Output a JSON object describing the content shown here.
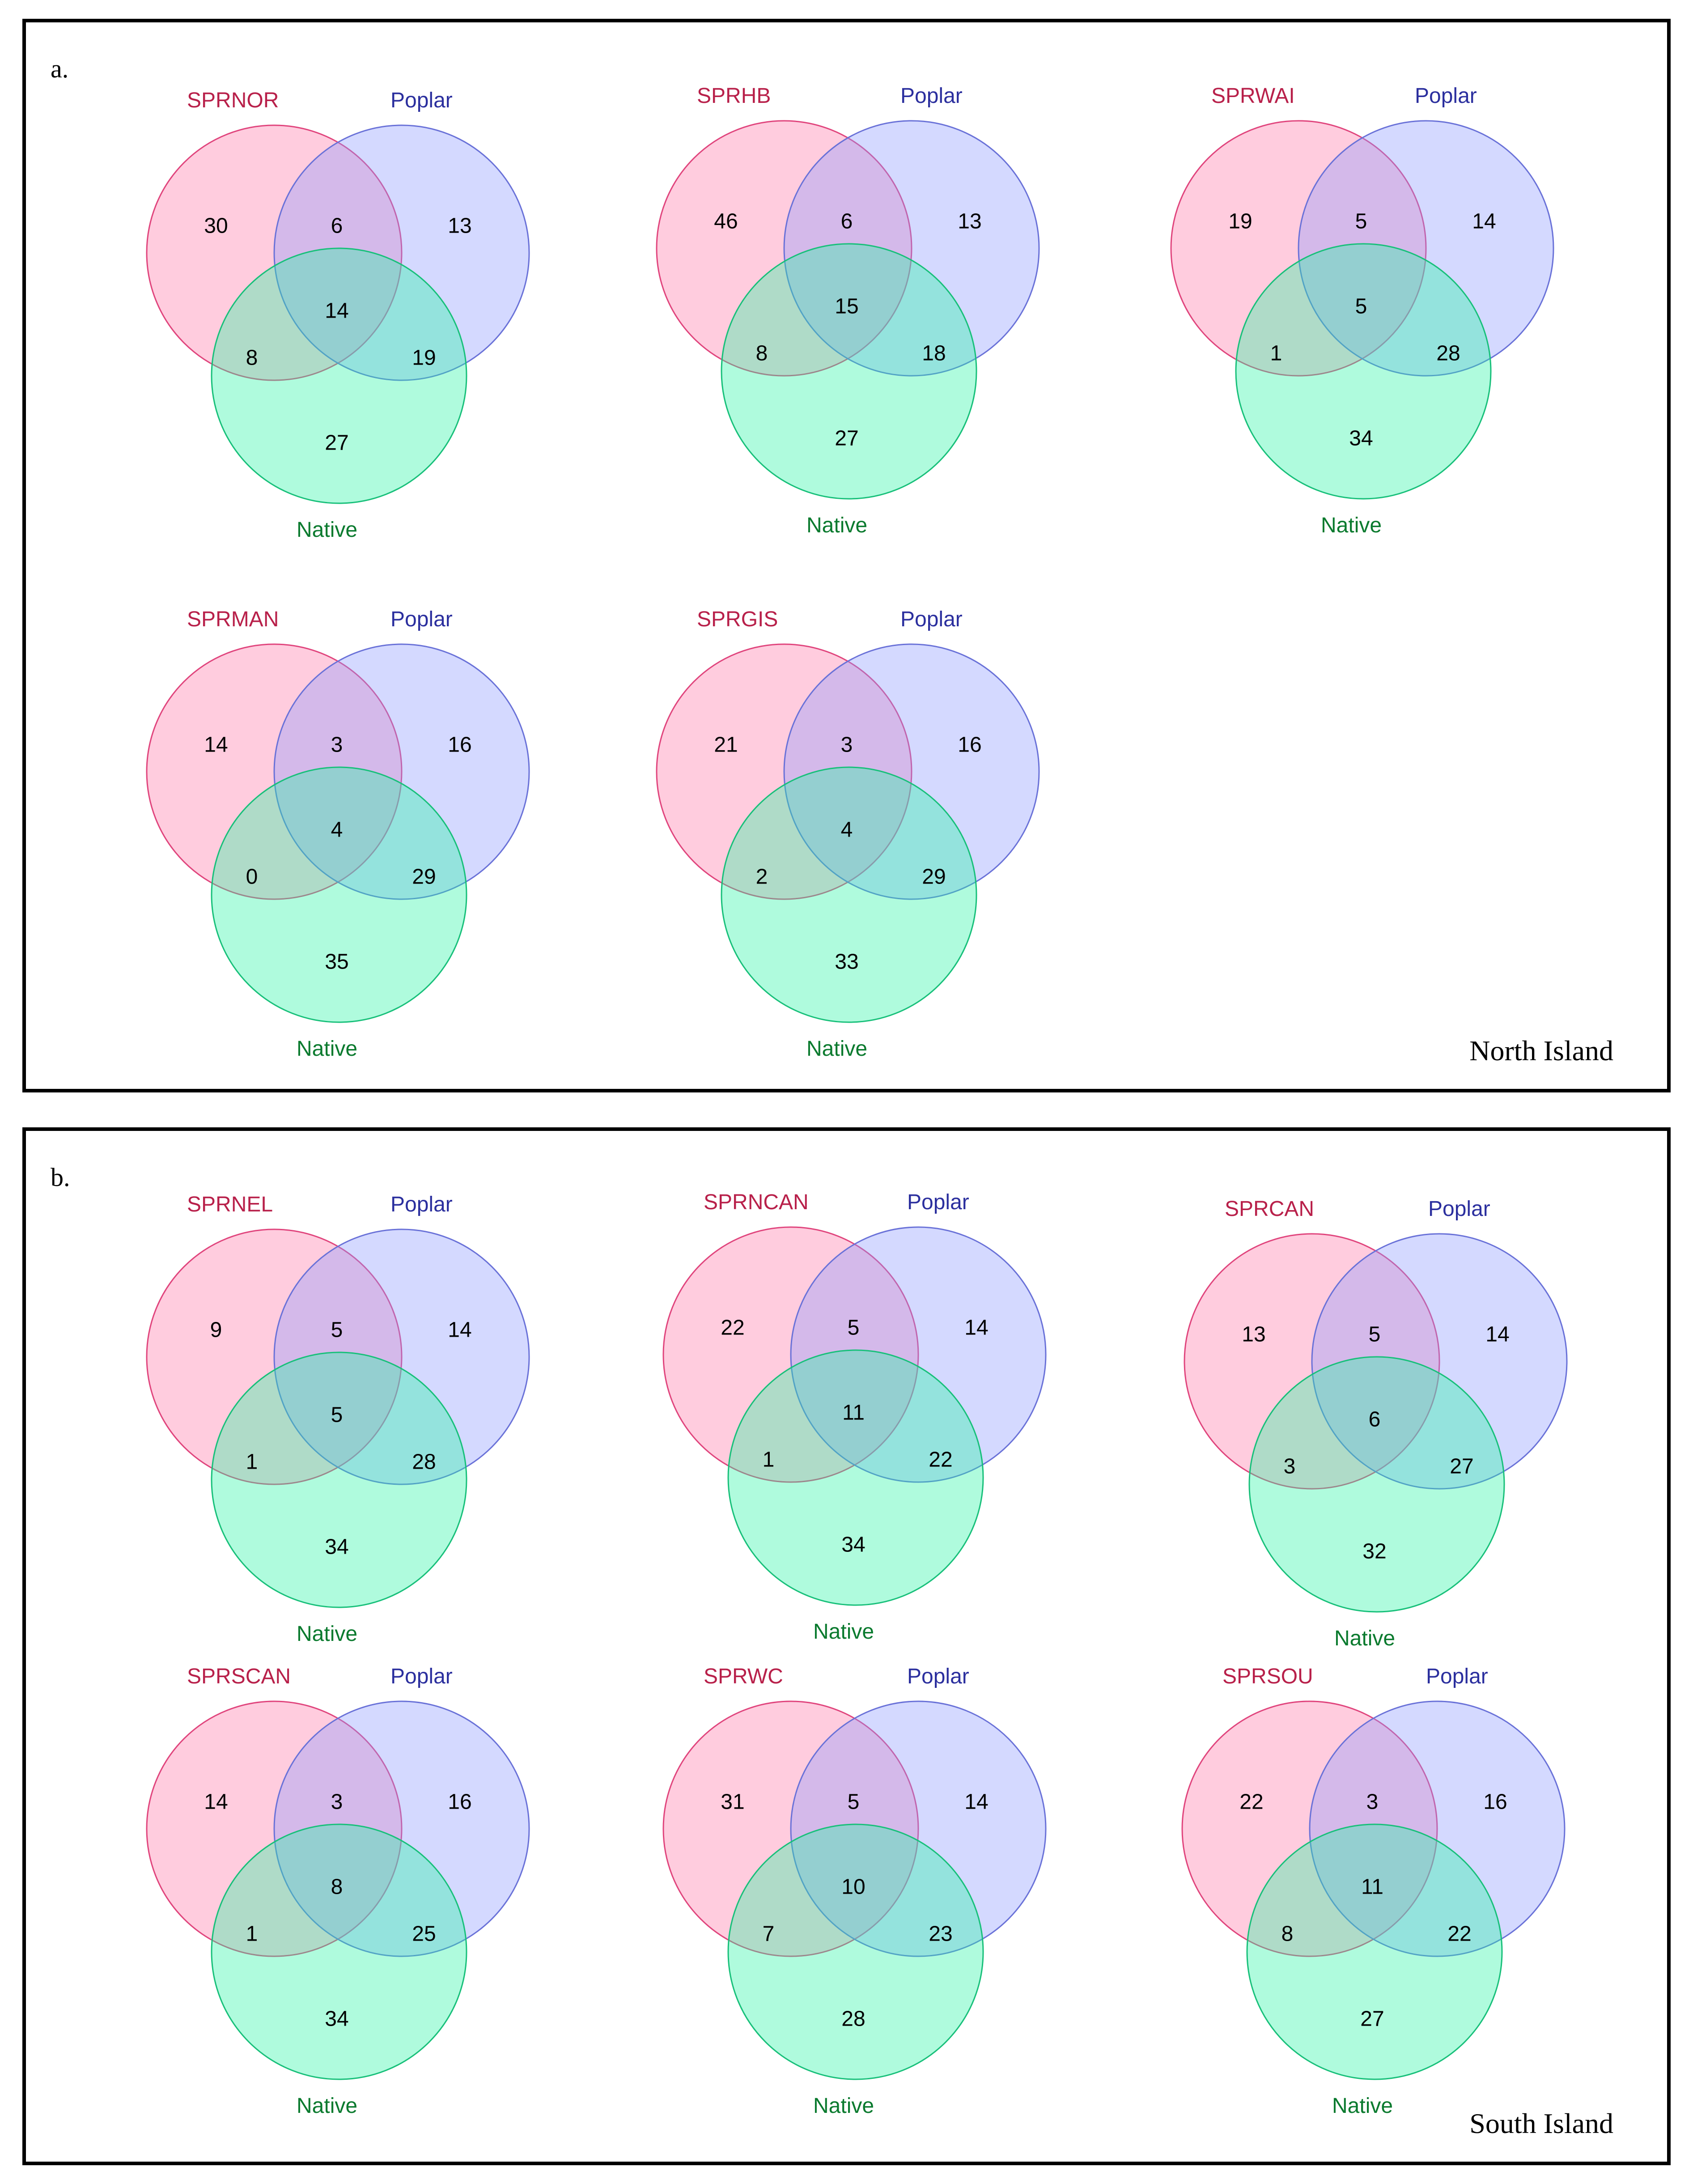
{
  "colors": {
    "site_fill": "#ff7aa8",
    "site_stroke": "#e0457d",
    "poplar_fill": "#8f9cff",
    "poplar_stroke": "#6a72d8",
    "native_fill": "#2ef5a6",
    "native_stroke": "#18c07a"
  },
  "panels": [
    {
      "letter": "a.",
      "island": "North Island",
      "diagrams": [
        {
          "site": "SPRNOR",
          "poplar": "Poplar",
          "native": "Native",
          "site_only": 30,
          "site_poplar": 6,
          "poplar_only": 13,
          "all": 14,
          "site_native": 8,
          "poplar_native": 19,
          "native_only": 27
        },
        {
          "site": "SPRHB",
          "poplar": "Poplar",
          "native": "Native",
          "site_only": 46,
          "site_poplar": 6,
          "poplar_only": 13,
          "all": 15,
          "site_native": 8,
          "poplar_native": 18,
          "native_only": 27
        },
        {
          "site": "SPRWAI",
          "poplar": "Poplar",
          "native": "Native",
          "site_only": 19,
          "site_poplar": 5,
          "poplar_only": 14,
          "all": 5,
          "site_native": 1,
          "poplar_native": 28,
          "native_only": 34
        },
        {
          "site": "SPRMAN",
          "poplar": "Poplar",
          "native": "Native",
          "site_only": 14,
          "site_poplar": 3,
          "poplar_only": 16,
          "all": 4,
          "site_native": 0,
          "poplar_native": 29,
          "native_only": 35
        },
        {
          "site": "SPRGIS",
          "poplar": "Poplar",
          "native": "Native",
          "site_only": 21,
          "site_poplar": 3,
          "poplar_only": 16,
          "all": 4,
          "site_native": 2,
          "poplar_native": 29,
          "native_only": 33
        }
      ]
    },
    {
      "letter": "b.",
      "island": "South Island",
      "diagrams": [
        {
          "site": "SPRNEL",
          "poplar": "Poplar",
          "native": "Native",
          "site_only": 9,
          "site_poplar": 5,
          "poplar_only": 14,
          "all": 5,
          "site_native": 1,
          "poplar_native": 28,
          "native_only": 34
        },
        {
          "site": "SPRNCAN",
          "poplar": "Poplar",
          "native": "Native",
          "site_only": 22,
          "site_poplar": 5,
          "poplar_only": 14,
          "all": 11,
          "site_native": 1,
          "poplar_native": 22,
          "native_only": 34
        },
        {
          "site": "SPRCAN",
          "poplar": "Poplar",
          "native": "Native",
          "site_only": 13,
          "site_poplar": 5,
          "poplar_only": 14,
          "all": 6,
          "site_native": 3,
          "poplar_native": 27,
          "native_only": 32
        },
        {
          "site": "SPRSCAN",
          "poplar": "Poplar",
          "native": "Native",
          "site_only": 14,
          "site_poplar": 3,
          "poplar_only": 16,
          "all": 8,
          "site_native": 1,
          "poplar_native": 25,
          "native_only": 34
        },
        {
          "site": "SPRWC",
          "poplar": "Poplar",
          "native": "Native",
          "site_only": 31,
          "site_poplar": 5,
          "poplar_only": 14,
          "all": 10,
          "site_native": 7,
          "poplar_native": 23,
          "native_only": 28
        },
        {
          "site": "SPRSOU",
          "poplar": "Poplar",
          "native": "Native",
          "site_only": 22,
          "site_poplar": 3,
          "poplar_only": 16,
          "all": 11,
          "site_native": 8,
          "poplar_native": 22,
          "native_only": 27
        }
      ]
    }
  ]
}
